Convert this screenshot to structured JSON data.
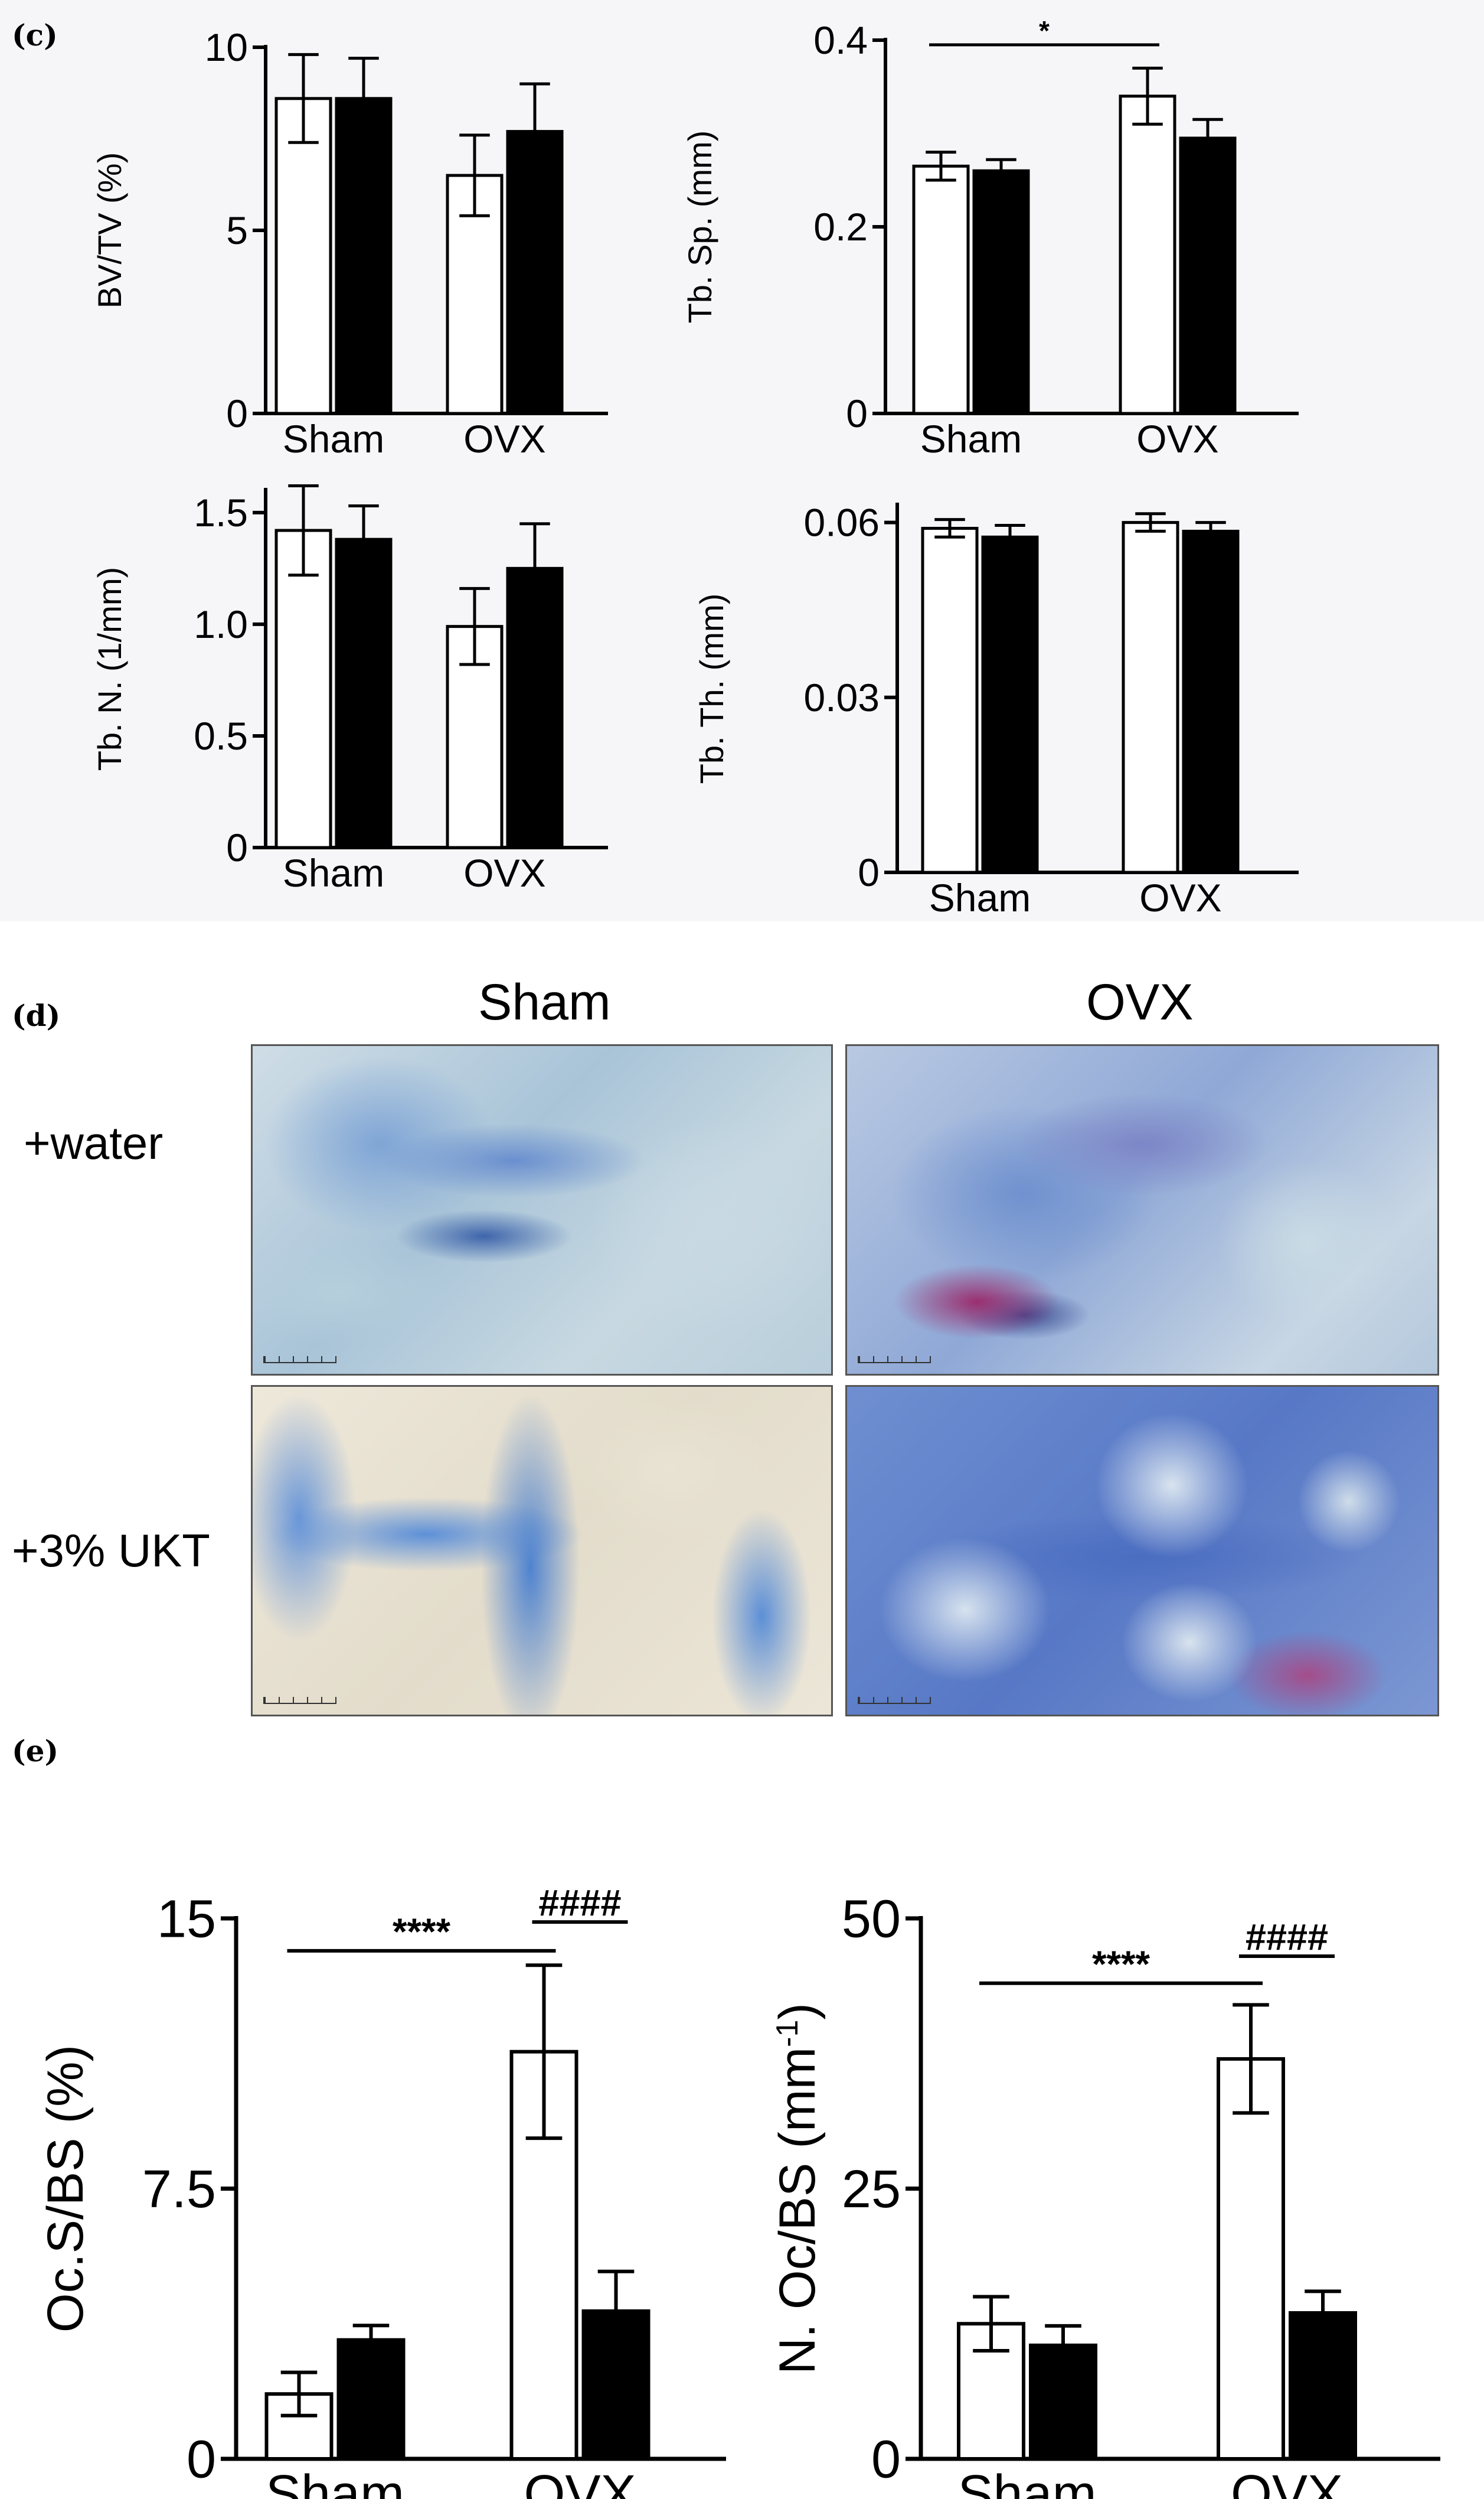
{
  "panels": {
    "c": "(c)",
    "d": "(d)",
    "e": "(e)"
  },
  "micrographs": {
    "col_labels": [
      "Sham",
      "OVX"
    ],
    "row_labels": [
      "+water",
      "+3% UKT"
    ]
  },
  "colors": {
    "open_bar": "#ffffff",
    "filled_bar": "#000000",
    "axis": "#000000",
    "panel_c_background": "#f6f6f8"
  },
  "chart_data": [
    {
      "id": "bvtv",
      "type": "bar",
      "ylabel": "BV/TV (%)",
      "categories": [
        "Sham",
        "OVX"
      ],
      "ylim": [
        0,
        10
      ],
      "yticks": [
        0,
        5,
        10
      ],
      "ytick_labels": [
        "0",
        "5",
        "10"
      ],
      "series": [
        {
          "fill": "open",
          "values": [
            8.6,
            6.5
          ],
          "errors": [
            1.2,
            1.1
          ]
        },
        {
          "fill": "filled",
          "values": [
            8.6,
            7.7
          ],
          "errors": [
            1.1,
            1.3
          ]
        }
      ],
      "significance": []
    },
    {
      "id": "tbsp",
      "type": "bar",
      "ylabel": "Tb. Sp. (mm)",
      "categories": [
        "Sham",
        "OVX"
      ],
      "ylim": [
        0,
        0.4
      ],
      "yticks": [
        0,
        0.2,
        0.4
      ],
      "ytick_labels": [
        "0",
        "0.2",
        "0.4"
      ],
      "series": [
        {
          "fill": "open",
          "values": [
            0.265,
            0.34
          ],
          "errors": [
            0.015,
            0.03
          ]
        },
        {
          "fill": "filled",
          "values": [
            0.26,
            0.295
          ],
          "errors": [
            0.012,
            0.02
          ]
        }
      ],
      "significance": [
        {
          "from": [
            0,
            0
          ],
          "to": [
            1,
            0
          ],
          "level": 0.395,
          "label": "*"
        }
      ]
    },
    {
      "id": "tbn",
      "type": "bar",
      "ylabel": "Tb. N. (1/mm)",
      "categories": [
        "Sham",
        "OVX"
      ],
      "ylim": [
        0,
        1.6
      ],
      "yticks": [
        0,
        0.5,
        1.0,
        1.5
      ],
      "ytick_labels": [
        "0",
        "0.5",
        "1.0",
        "1.5"
      ],
      "series": [
        {
          "fill": "open",
          "values": [
            1.42,
            0.99
          ],
          "errors": [
            0.2,
            0.17
          ]
        },
        {
          "fill": "filled",
          "values": [
            1.38,
            1.25
          ],
          "errors": [
            0.15,
            0.2
          ]
        }
      ],
      "significance": []
    },
    {
      "id": "tbth",
      "type": "bar",
      "ylabel": "Tb. Th. (mm)",
      "categories": [
        "Sham",
        "OVX"
      ],
      "ylim": [
        0,
        0.063
      ],
      "yticks": [
        0,
        0.03,
        0.06
      ],
      "ytick_labels": [
        "0",
        "0.03",
        "0.06"
      ],
      "series": [
        {
          "fill": "open",
          "values": [
            0.059,
            0.06
          ],
          "errors": [
            0.0015,
            0.0015
          ]
        },
        {
          "fill": "filled",
          "values": [
            0.0575,
            0.0585
          ],
          "errors": [
            0.002,
            0.0015
          ]
        }
      ],
      "significance": []
    },
    {
      "id": "ocsbs",
      "type": "bar",
      "ylabel": "Oc.S/BS (%)",
      "categories": [
        "Sham",
        "OVX"
      ],
      "ylim": [
        0,
        15
      ],
      "yticks": [
        0,
        7.5,
        15
      ],
      "ytick_labels": [
        "0",
        "7.5",
        "15"
      ],
      "series": [
        {
          "fill": "open",
          "values": [
            1.8,
            11.3
          ],
          "errors": [
            0.6,
            2.4
          ]
        },
        {
          "fill": "filled",
          "values": [
            3.3,
            4.1
          ],
          "errors": [
            0.4,
            1.1
          ]
        }
      ],
      "significance": [
        {
          "from": [
            0,
            0
          ],
          "to": [
            1,
            0
          ],
          "level": 14.1,
          "label": "****"
        },
        {
          "from": [
            1,
            0
          ],
          "to": [
            1,
            1
          ],
          "level": 14.9,
          "label": "####"
        }
      ]
    },
    {
      "id": "nocbs",
      "type": "bar",
      "ylabel": "N. Oc/BS (mm",
      "ylabel_sup": "-1",
      "ylabel_close": ")",
      "categories": [
        "Sham",
        "OVX"
      ],
      "ylim": [
        0,
        50
      ],
      "yticks": [
        0,
        25,
        50
      ],
      "ytick_labels": [
        "0",
        "25",
        "50"
      ],
      "series": [
        {
          "fill": "open",
          "values": [
            12.5,
            37
          ],
          "errors": [
            2.5,
            5
          ]
        },
        {
          "fill": "filled",
          "values": [
            10.5,
            13.5
          ],
          "errors": [
            1.8,
            2
          ]
        }
      ],
      "significance": [
        {
          "from": [
            0,
            0
          ],
          "to": [
            1,
            0
          ],
          "level": 44,
          "label": "****"
        },
        {
          "from": [
            1,
            0
          ],
          "to": [
            1,
            1
          ],
          "level": 46.5,
          "label": "####"
        }
      ]
    }
  ]
}
